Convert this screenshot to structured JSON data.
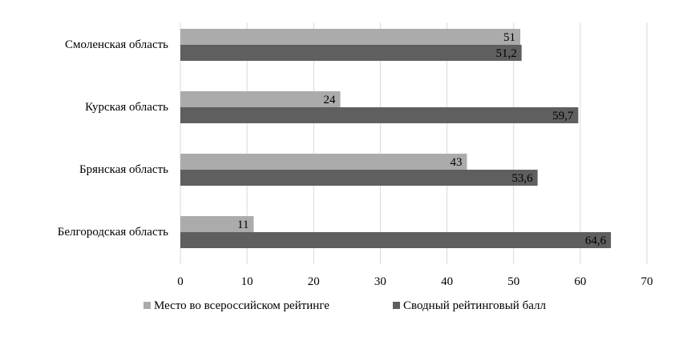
{
  "chart_data": {
    "type": "bar",
    "orientation": "horizontal",
    "categories": [
      "Смоленская область",
      "Курская область",
      "Брянская область",
      "Белгородская область"
    ],
    "series": [
      {
        "name": "Место во всероссийском рейтинге",
        "color": "#ababab",
        "values": [
          51,
          24,
          43,
          11
        ],
        "labels": [
          "51",
          "24",
          "43",
          "11"
        ]
      },
      {
        "name": "Сводный рейтинговый балл",
        "color": "#5f5f5f",
        "values": [
          51.2,
          59.7,
          53.6,
          64.6
        ],
        "labels": [
          "51,2",
          "59,7",
          "53,6",
          "64,6"
        ]
      }
    ],
    "xlim": [
      0,
      70
    ],
    "xticks": [
      "0",
      "10",
      "20",
      "30",
      "40",
      "50",
      "60",
      "70"
    ],
    "grid": true,
    "legend_position": "bottom"
  }
}
